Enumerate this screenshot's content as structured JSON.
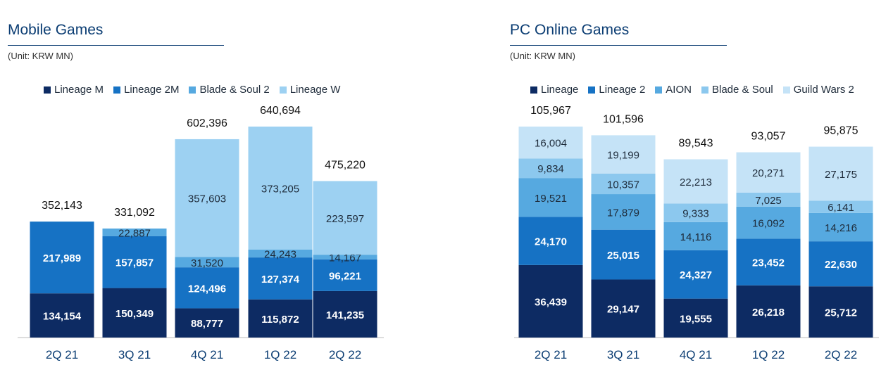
{
  "panels": [
    {
      "title": "Mobile Games",
      "unit": "(Unit: KRW MN)",
      "chart_data": {
        "type": "bar",
        "stacked": true,
        "categories": [
          "2Q 21",
          "3Q 21",
          "4Q 21",
          "1Q 22",
          "2Q 22"
        ],
        "series": [
          {
            "name": "Lineage M",
            "color": "#0d2b63",
            "values": [
              134154,
              150349,
              88777,
              115872,
              141235
            ]
          },
          {
            "name": "Lineage 2M",
            "color": "#1672c4",
            "values": [
              217989,
              157857,
              124496,
              127374,
              96221
            ]
          },
          {
            "name": "Blade & Soul 2",
            "color": "#56a9e0",
            "values": [
              null,
              22887,
              31520,
              24243,
              14167
            ]
          },
          {
            "name": "Lineage W",
            "color": "#9dd1f2",
            "values": [
              null,
              null,
              357603,
              373205,
              223597
            ]
          }
        ],
        "value_labels": [
          [
            "134,154",
            "150,349",
            "88,777",
            "115,872",
            "141,235"
          ],
          [
            "217,989",
            "157,857",
            "124,496",
            "127,374",
            "96,221"
          ],
          [
            "",
            "22,887",
            "31,520",
            "24,243",
            "14,167"
          ],
          [
            "",
            "",
            "357,603",
            "373,205",
            "223,597"
          ]
        ],
        "totals": [
          352143,
          331092,
          602396,
          640694,
          475220
        ],
        "total_labels": [
          "352,143",
          "331,092",
          "602,396",
          "640,694",
          "475,220"
        ],
        "ylim": [
          0,
          700000
        ],
        "legend": "top",
        "grid": false,
        "title": "Mobile Games"
      }
    },
    {
      "title": "PC Online Games",
      "unit": "(Unit: KRW MN)",
      "chart_data": {
        "type": "bar",
        "stacked": true,
        "categories": [
          "2Q 21",
          "3Q 21",
          "4Q 21",
          "1Q 22",
          "2Q 22"
        ],
        "series": [
          {
            "name": "Lineage",
            "color": "#0d2b63",
            "values": [
              36439,
              29147,
              19555,
              26218,
              25712
            ]
          },
          {
            "name": "Lineage 2",
            "color": "#1672c4",
            "values": [
              24170,
              25015,
              24327,
              23452,
              22630
            ]
          },
          {
            "name": "AION",
            "color": "#56a9e0",
            "values": [
              19521,
              17879,
              14116,
              16092,
              14216
            ]
          },
          {
            "name": "Blade & Soul",
            "color": "#8cc8ee",
            "values": [
              9834,
              10357,
              9333,
              7025,
              6141
            ]
          },
          {
            "name": "Guild Wars 2",
            "color": "#c5e3f7",
            "values": [
              16004,
              19199,
              22213,
              20271,
              27175
            ]
          }
        ],
        "value_labels": [
          [
            "36,439",
            "29,147",
            "19,555",
            "26,218",
            "25,712"
          ],
          [
            "24,170",
            "25,015",
            "24,327",
            "23,452",
            "22,630"
          ],
          [
            "19,521",
            "17,879",
            "14,116",
            "16,092",
            "14,216"
          ],
          [
            "9,834",
            "10,357",
            "9,333",
            "7,025",
            "6,141"
          ],
          [
            "16,004",
            "19,199",
            "22,213",
            "20,271",
            "27,175"
          ]
        ],
        "totals": [
          105967,
          101596,
          89543,
          93057,
          95875
        ],
        "total_labels": [
          "105,967",
          "101,596",
          "89,543",
          "93,057",
          "95,875"
        ],
        "ylim": [
          0,
          120000
        ],
        "legend": "top",
        "grid": false,
        "title": "PC Online Games"
      }
    }
  ]
}
